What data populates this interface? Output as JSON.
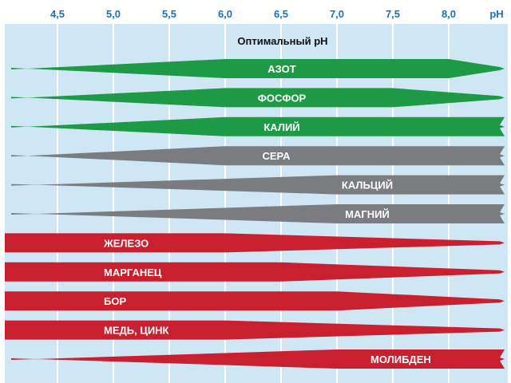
{
  "chart_data": {
    "type": "bar",
    "title": "Оптимальный pH",
    "x_unit": "pH",
    "x_ticks": [
      "4,5",
      "5,0",
      "5,5",
      "6,0",
      "6,5",
      "7,0",
      "7,5",
      "8,0"
    ],
    "xlim": [
      4.0,
      8.5
    ],
    "grid": true,
    "colors": {
      "background": "#cfe6f5",
      "grid": "#ffffff",
      "tick_text": "#1a73b8",
      "green": "#1e9a47",
      "gray": "#7a7c80",
      "red": "#c8202f"
    },
    "bands": [
      {
        "label": "АЗОТ",
        "color": "green",
        "left_full_ph": 6.0,
        "right_full_ph": 8.0
      },
      {
        "label": "ФОСФОР",
        "color": "green",
        "left_full_ph": 6.0,
        "right_full_ph": 7.5
      },
      {
        "label": "КАЛИЙ",
        "color": "green",
        "left_full_ph": 6.0,
        "right_full_ph": 8.5
      },
      {
        "label": "СЕРА",
        "color": "gray",
        "left_full_ph": 6.0,
        "right_full_ph": 8.5
      },
      {
        "label": "КАЛЬЦИЙ",
        "color": "gray",
        "left_full_ph": 7.0,
        "right_full_ph": 8.5
      },
      {
        "label": "МАГНИЙ",
        "color": "gray",
        "left_full_ph": 7.0,
        "right_full_ph": 8.5
      },
      {
        "label": "ЖЕЛЕЗО",
        "color": "red",
        "left_full_ph": 4.0,
        "right_full_ph": 6.0
      },
      {
        "label": "МАРГАНЕЦ",
        "color": "red",
        "left_full_ph": 4.0,
        "right_full_ph": 6.5
      },
      {
        "label": "БОР",
        "color": "red",
        "left_full_ph": 4.0,
        "right_full_ph": 7.0
      },
      {
        "label": "МЕДЬ, ЦИНК",
        "color": "red",
        "left_full_ph": 4.0,
        "right_full_ph": 6.0
      },
      {
        "label": "МОЛИБДЕН",
        "color": "red",
        "left_full_ph": 7.0,
        "right_full_ph": 8.5
      }
    ]
  }
}
